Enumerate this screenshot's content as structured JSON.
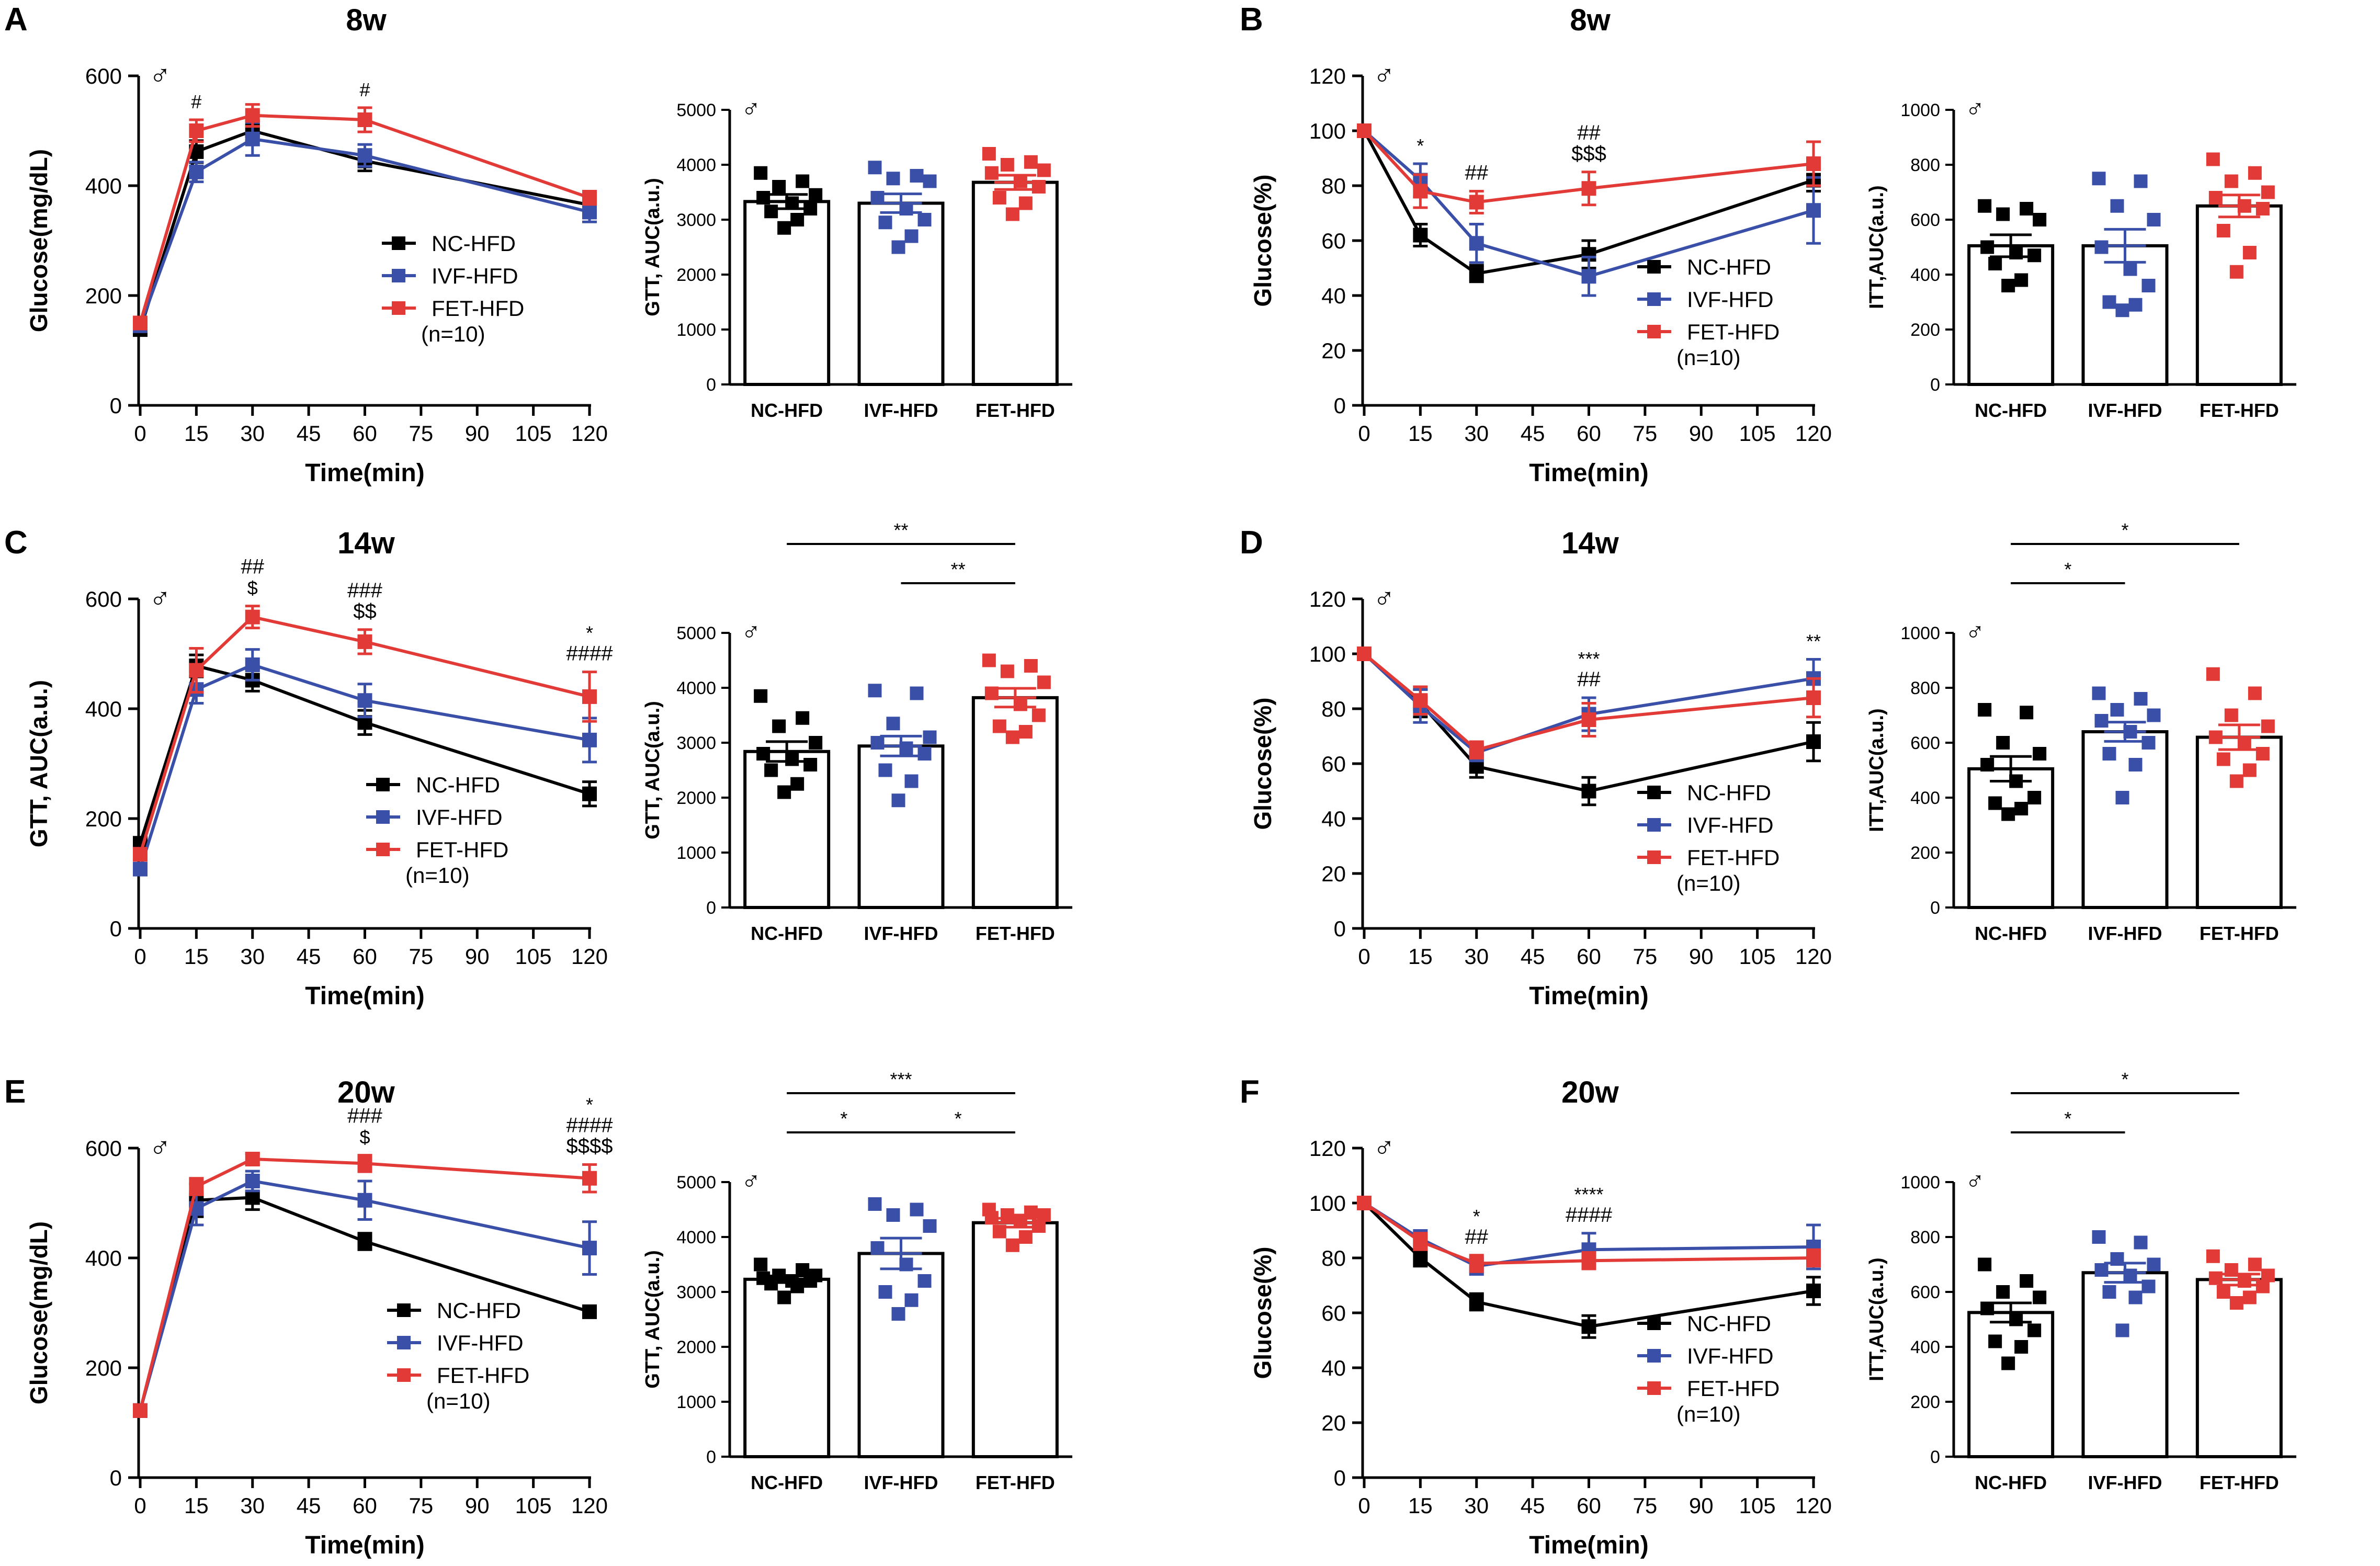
{
  "colors": {
    "NC-HFD": "#000000",
    "IVF-HFD": "#3a4fa8",
    "FET-HFD": "#e23a36"
  },
  "groups": [
    "NC-HFD",
    "IVF-HFD",
    "FET-HFD"
  ],
  "male_symbol": "♂",
  "n_label": "(n=10)",
  "panels": [
    {
      "letter": "A",
      "title": "8w"
    },
    {
      "letter": "B",
      "title": "8w"
    },
    {
      "letter": "C",
      "title": "14w"
    },
    {
      "letter": "D",
      "title": "14w"
    },
    {
      "letter": "E",
      "title": "20w"
    },
    {
      "letter": "F",
      "title": "20w"
    }
  ],
  "chart_data": [
    {
      "id": "A-line",
      "type": "line",
      "panel": "A",
      "xlabel": "Time(min)",
      "ylabel": "Glucose(mg/dL)",
      "x": [
        0,
        15,
        30,
        60,
        120
      ],
      "xticks": [
        0,
        15,
        30,
        45,
        60,
        75,
        90,
        105,
        120
      ],
      "ylim": [
        0,
        600
      ],
      "yticks": [
        0,
        200,
        400,
        600
      ],
      "series": [
        {
          "name": "NC-HFD",
          "values": [
            138,
            462,
            500,
            445,
            365
          ],
          "err": [
            8,
            20,
            18,
            18,
            15
          ]
        },
        {
          "name": "IVF-HFD",
          "values": [
            145,
            425,
            485,
            455,
            352
          ],
          "err": [
            8,
            18,
            30,
            20,
            18
          ]
        },
        {
          "name": "FET-HFD",
          "values": [
            150,
            500,
            528,
            520,
            378
          ],
          "err": [
            8,
            20,
            20,
            22,
            12
          ]
        }
      ],
      "annotations": [
        {
          "x": 15,
          "lines": [
            "#"
          ]
        },
        {
          "x": 60,
          "lines": [
            "#"
          ]
        }
      ]
    },
    {
      "id": "A-bar",
      "type": "bar",
      "panel": "A",
      "ylabel": "GTT, AUC(a.u.)",
      "ylim": [
        0,
        5000
      ],
      "yticks": [
        0,
        1000,
        2000,
        3000,
        4000,
        5000
      ],
      "bars": [
        {
          "name": "NC-HFD",
          "mean": 3330,
          "sem": 130,
          "points": [
            3850,
            3700,
            3600,
            3450,
            3400,
            3300,
            3200,
            3150,
            3000,
            2850
          ]
        },
        {
          "name": "IVF-HFD",
          "mean": 3300,
          "sem": 170,
          "points": [
            3950,
            3800,
            3750,
            3700,
            3400,
            3200,
            3000,
            2950,
            2700,
            2500
          ]
        },
        {
          "name": "FET-HFD",
          "mean": 3680,
          "sem": 130,
          "points": [
            4200,
            4050,
            4000,
            3900,
            3850,
            3700,
            3600,
            3400,
            3300,
            3100
          ]
        }
      ],
      "comparisons": []
    },
    {
      "id": "B-line",
      "type": "line",
      "panel": "B",
      "xlabel": "Time(min)",
      "ylabel": "Glucose(%)",
      "x": [
        0,
        15,
        30,
        60,
        120
      ],
      "xticks": [
        0,
        15,
        30,
        45,
        60,
        75,
        90,
        105,
        120
      ],
      "ylim": [
        0,
        120
      ],
      "yticks": [
        0,
        20,
        40,
        60,
        80,
        100,
        120
      ],
      "series": [
        {
          "name": "NC-HFD",
          "values": [
            100,
            62,
            48,
            55,
            82
          ],
          "err": [
            0,
            4,
            3,
            5,
            4
          ]
        },
        {
          "name": "IVF-HFD",
          "values": [
            100,
            82,
            59,
            47,
            71
          ],
          "err": [
            0,
            6,
            7,
            7,
            12
          ]
        },
        {
          "name": "FET-HFD",
          "values": [
            100,
            78,
            74,
            79,
            88
          ],
          "err": [
            0,
            6,
            4,
            6,
            8
          ]
        }
      ],
      "annotations": [
        {
          "x": 15,
          "lines": [
            "*"
          ]
        },
        {
          "x": 30,
          "lines": [
            "##"
          ]
        },
        {
          "x": 60,
          "lines": [
            "##",
            "$$$"
          ]
        }
      ]
    },
    {
      "id": "B-bar",
      "type": "bar",
      "panel": "B",
      "ylabel": "ITT,AUC(a.u.)",
      "ylim": [
        0,
        1000
      ],
      "yticks": [
        0,
        200,
        400,
        600,
        800,
        1000
      ],
      "bars": [
        {
          "name": "NC-HFD",
          "mean": 505,
          "sem": 40,
          "points": [
            650,
            640,
            620,
            600,
            500,
            480,
            470,
            440,
            380,
            360
          ]
        },
        {
          "name": "IVF-HFD",
          "mean": 505,
          "sem": 60,
          "points": [
            750,
            740,
            650,
            600,
            500,
            420,
            360,
            300,
            290,
            270
          ]
        },
        {
          "name": "FET-HFD",
          "mean": 650,
          "sem": 40,
          "points": [
            820,
            770,
            740,
            700,
            680,
            650,
            640,
            560,
            480,
            410
          ]
        }
      ],
      "comparisons": []
    },
    {
      "id": "C-line",
      "type": "line",
      "panel": "C",
      "xlabel": "Time(min)",
      "ylabel": "GTT, AUC(a.u.)",
      "x": [
        0,
        15,
        30,
        60,
        120
      ],
      "xticks": [
        0,
        15,
        30,
        45,
        60,
        75,
        90,
        105,
        120
      ],
      "ylim": [
        0,
        600
      ],
      "yticks": [
        0,
        200,
        400,
        600
      ],
      "series": [
        {
          "name": "NC-HFD",
          "values": [
            155,
            478,
            452,
            375,
            245
          ],
          "err": [
            8,
            20,
            20,
            22,
            22
          ]
        },
        {
          "name": "IVF-HFD",
          "values": [
            108,
            435,
            480,
            415,
            343
          ],
          "err": [
            8,
            25,
            28,
            30,
            40
          ]
        },
        {
          "name": "FET-HFD",
          "values": [
            135,
            470,
            567,
            522,
            422
          ],
          "err": [
            8,
            40,
            20,
            22,
            45
          ]
        }
      ],
      "annotations": [
        {
          "x": 30,
          "lines": [
            "##",
            "$"
          ]
        },
        {
          "x": 60,
          "lines": [
            "###",
            "$$"
          ]
        },
        {
          "x": 120,
          "lines": [
            "*",
            "####"
          ]
        }
      ]
    },
    {
      "id": "C-bar",
      "type": "bar",
      "panel": "C",
      "ylabel": "GTT, AUC(a.u.)",
      "ylim": [
        0,
        5000
      ],
      "yticks": [
        0,
        1000,
        2000,
        3000,
        4000,
        5000
      ],
      "bars": [
        {
          "name": "NC-HFD",
          "mean": 2840,
          "sem": 180,
          "points": [
            3850,
            3450,
            3300,
            3000,
            2800,
            2700,
            2600,
            2500,
            2250,
            2100
          ]
        },
        {
          "name": "IVF-HFD",
          "mean": 2940,
          "sem": 180,
          "points": [
            3950,
            3900,
            3350,
            3100,
            3000,
            2900,
            2800,
            2500,
            2300,
            1950
          ]
        },
        {
          "name": "FET-HFD",
          "mean": 3820,
          "sem": 170,
          "points": [
            4500,
            4400,
            4300,
            4100,
            3900,
            3700,
            3500,
            3300,
            3200,
            3100
          ]
        }
      ],
      "comparisons": [
        {
          "from": 0,
          "to": 2,
          "label": "**"
        },
        {
          "from": 1,
          "to": 2,
          "label": "**"
        }
      ]
    },
    {
      "id": "D-line",
      "type": "line",
      "panel": "D",
      "xlabel": "Time(min)",
      "ylabel": "Glucose(%)",
      "x": [
        0,
        15,
        30,
        60,
        120
      ],
      "xticks": [
        0,
        15,
        30,
        45,
        60,
        75,
        90,
        105,
        120
      ],
      "ylim": [
        0,
        120
      ],
      "yticks": [
        0,
        20,
        40,
        60,
        80,
        100,
        120
      ],
      "series": [
        {
          "name": "NC-HFD",
          "values": [
            100,
            82,
            59,
            50,
            68
          ],
          "err": [
            0,
            5,
            4,
            5,
            7
          ]
        },
        {
          "name": "IVF-HFD",
          "values": [
            100,
            81,
            64,
            78,
            91
          ],
          "err": [
            0,
            6,
            3,
            6,
            7
          ]
        },
        {
          "name": "FET-HFD",
          "values": [
            100,
            83,
            65,
            76,
            84
          ],
          "err": [
            0,
            5,
            3,
            6,
            7
          ]
        }
      ],
      "annotations": [
        {
          "x": 60,
          "lines": [
            "***",
            "##"
          ]
        },
        {
          "x": 120,
          "lines": [
            "**"
          ]
        }
      ]
    },
    {
      "id": "D-bar",
      "type": "bar",
      "panel": "D",
      "ylabel": "ITT,AUC(a.u.)",
      "ylim": [
        0,
        1000
      ],
      "yticks": [
        0,
        200,
        400,
        600,
        800,
        1000
      ],
      "bars": [
        {
          "name": "NC-HFD",
          "mean": 505,
          "sem": 45,
          "points": [
            720,
            710,
            600,
            560,
            520,
            460,
            400,
            380,
            360,
            340
          ]
        },
        {
          "name": "IVF-HFD",
          "mean": 640,
          "sem": 35,
          "points": [
            780,
            760,
            720,
            700,
            680,
            640,
            600,
            560,
            520,
            400
          ]
        },
        {
          "name": "FET-HFD",
          "mean": 620,
          "sem": 45,
          "points": [
            850,
            780,
            700,
            660,
            620,
            600,
            560,
            540,
            500,
            460
          ]
        }
      ],
      "comparisons": [
        {
          "from": 0,
          "to": 1,
          "label": "*"
        },
        {
          "from": 0,
          "to": 2,
          "label": "*"
        }
      ]
    },
    {
      "id": "E-line",
      "type": "line",
      "panel": "E",
      "xlabel": "Time(min)",
      "ylabel": "Glucose(mg/dL)",
      "x": [
        0,
        15,
        30,
        60,
        120
      ],
      "xticks": [
        0,
        15,
        30,
        45,
        60,
        75,
        90,
        105,
        120
      ],
      "ylim": [
        0,
        600
      ],
      "yticks": [
        0,
        200,
        400,
        600
      ],
      "series": [
        {
          "name": "NC-HFD",
          "values": [
            122,
            505,
            510,
            430,
            302
          ],
          "err": [
            5,
            30,
            22,
            15,
            8
          ]
        },
        {
          "name": "IVF-HFD",
          "values": [
            122,
            490,
            540,
            505,
            418
          ],
          "err": [
            5,
            30,
            18,
            35,
            48
          ]
        },
        {
          "name": "FET-HFD",
          "values": [
            122,
            530,
            580,
            572,
            545
          ],
          "err": [
            5,
            15,
            10,
            15,
            25
          ]
        }
      ],
      "annotations": [
        {
          "x": 60,
          "lines": [
            "###",
            "$"
          ]
        },
        {
          "x": 120,
          "lines": [
            "*",
            "####",
            "$$$$"
          ]
        }
      ]
    },
    {
      "id": "E-bar",
      "type": "bar",
      "panel": "E",
      "ylabel": "GTT, AUC(a.u.)",
      "ylim": [
        0,
        5000
      ],
      "yticks": [
        0,
        1000,
        2000,
        3000,
        4000,
        5000
      ],
      "bars": [
        {
          "name": "NC-HFD",
          "mean": 3230,
          "sem": 60,
          "points": [
            3500,
            3400,
            3300,
            3300,
            3250,
            3200,
            3200,
            3150,
            3100,
            2900
          ]
        },
        {
          "name": "IVF-HFD",
          "mean": 3700,
          "sem": 280,
          "points": [
            4600,
            4500,
            4400,
            4200,
            3800,
            3500,
            3200,
            3000,
            2850,
            2600
          ]
        },
        {
          "name": "FET-HFD",
          "mean": 4260,
          "sem": 80,
          "points": [
            4500,
            4450,
            4400,
            4400,
            4350,
            4300,
            4200,
            4100,
            4000,
            3850
          ]
        }
      ],
      "comparisons": [
        {
          "from": 0,
          "to": 1,
          "label": "*"
        },
        {
          "from": 0,
          "to": 2,
          "label": "***"
        },
        {
          "from": 1,
          "to": 2,
          "label": "*"
        }
      ]
    },
    {
      "id": "F-line",
      "type": "line",
      "panel": "F",
      "xlabel": "Time(min)",
      "ylabel": "Glucose(%)",
      "x": [
        0,
        15,
        30,
        60,
        120
      ],
      "xticks": [
        0,
        15,
        30,
        45,
        60,
        75,
        90,
        105,
        120
      ],
      "ylim": [
        0,
        120
      ],
      "yticks": [
        0,
        20,
        40,
        60,
        80,
        100,
        120
      ],
      "series": [
        {
          "name": "NC-HFD",
          "values": [
            100,
            80,
            64,
            55,
            68
          ],
          "err": [
            0,
            3,
            3,
            4,
            5
          ]
        },
        {
          "name": "IVF-HFD",
          "values": [
            100,
            87,
            77,
            83,
            84
          ],
          "err": [
            0,
            3,
            3,
            6,
            8
          ]
        },
        {
          "name": "FET-HFD",
          "values": [
            100,
            86,
            78,
            79,
            80
          ],
          "err": [
            0,
            3,
            3,
            3,
            3
          ]
        }
      ],
      "annotations": [
        {
          "x": 30,
          "lines": [
            "*",
            "##"
          ]
        },
        {
          "x": 60,
          "lines": [
            "****",
            "####"
          ]
        }
      ]
    },
    {
      "id": "F-bar",
      "type": "bar",
      "panel": "F",
      "ylabel": "ITT,AUC(a.u.)",
      "ylim": [
        0,
        1000
      ],
      "yticks": [
        0,
        200,
        400,
        600,
        800,
        1000
      ],
      "bars": [
        {
          "name": "NC-HFD",
          "mean": 525,
          "sem": 35,
          "points": [
            700,
            640,
            600,
            580,
            540,
            500,
            460,
            420,
            400,
            340
          ]
        },
        {
          "name": "IVF-HFD",
          "mean": 670,
          "sem": 35,
          "points": [
            800,
            780,
            720,
            700,
            680,
            660,
            620,
            600,
            580,
            460
          ]
        },
        {
          "name": "FET-HFD",
          "mean": 645,
          "sem": 20,
          "points": [
            730,
            700,
            680,
            660,
            650,
            640,
            620,
            600,
            580,
            560
          ]
        }
      ],
      "comparisons": [
        {
          "from": 0,
          "to": 1,
          "label": "*"
        },
        {
          "from": 0,
          "to": 2,
          "label": "*"
        }
      ]
    }
  ]
}
